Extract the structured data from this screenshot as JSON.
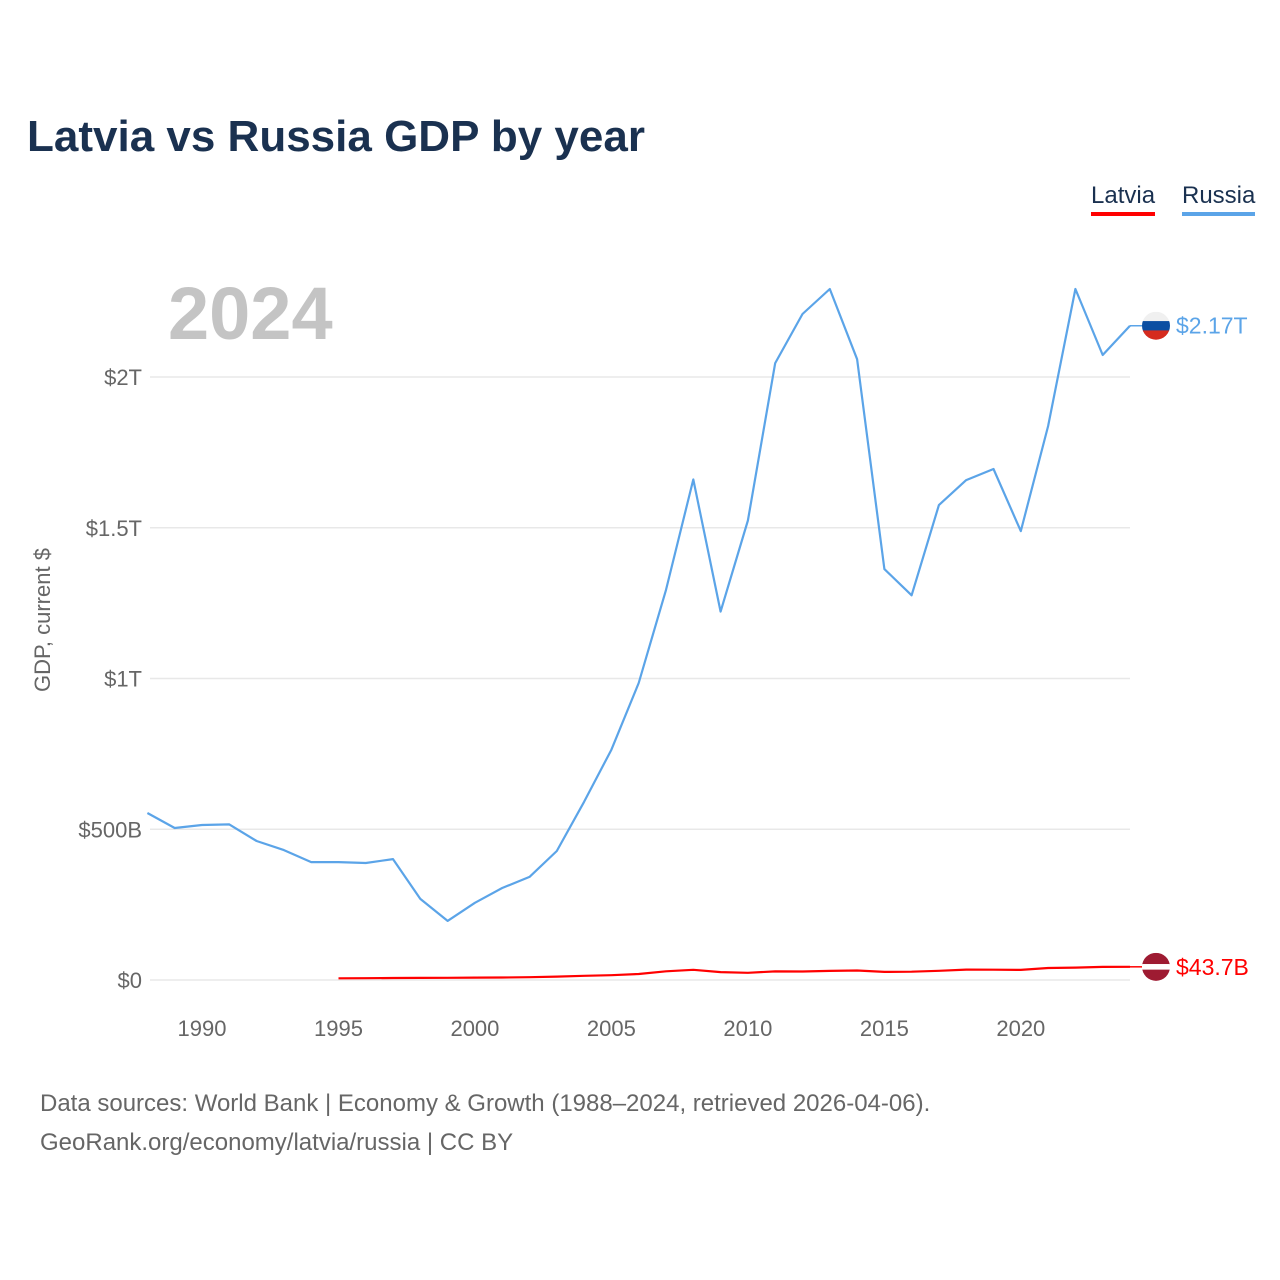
{
  "chart_data": {
    "type": "line",
    "title": "Latvia vs Russia GDP by year",
    "ylabel": "GDP, current $",
    "xlabel": "",
    "year_label": "2024",
    "xlim": [
      1988,
      2024
    ],
    "ylim": [
      0,
      2.3
    ],
    "y_unit": "trillion USD",
    "x_ticks": [
      1990,
      1995,
      2000,
      2005,
      2010,
      2015,
      2020
    ],
    "y_ticks": [
      {
        "v": 0,
        "label": "$0"
      },
      {
        "v": 0.5,
        "label": "$500B"
      },
      {
        "v": 1,
        "label": "$1T"
      },
      {
        "v": 1.5,
        "label": "$1.5T"
      },
      {
        "v": 2,
        "label": "$2T"
      }
    ],
    "grid": true,
    "legend": "top-right",
    "series": [
      {
        "name": "Latvia",
        "color": "#ff0000",
        "end_label": "$43.7B",
        "flag": "latvia",
        "x": [
          1995,
          1996,
          1997,
          1998,
          1999,
          2000,
          2001,
          2002,
          2003,
          2004,
          2005,
          2006,
          2007,
          2008,
          2009,
          2010,
          2011,
          2012,
          2013,
          2014,
          2015,
          2016,
          2017,
          2018,
          2019,
          2020,
          2021,
          2022,
          2023,
          2024
        ],
        "values": [
          0.0056,
          0.0059,
          0.0065,
          0.0069,
          0.0073,
          0.0079,
          0.0083,
          0.0093,
          0.0112,
          0.0138,
          0.016,
          0.02,
          0.0288,
          0.0337,
          0.0262,
          0.0238,
          0.0285,
          0.0281,
          0.0303,
          0.0314,
          0.027,
          0.0276,
          0.0305,
          0.0344,
          0.0341,
          0.0336,
          0.0399,
          0.0412,
          0.0436,
          0.0437
        ]
      },
      {
        "name": "Russia",
        "color": "#5ba4e8",
        "end_label": "$2.17T",
        "flag": "russia",
        "x": [
          1988,
          1989,
          1990,
          1991,
          1992,
          1993,
          1994,
          1995,
          1996,
          1997,
          1998,
          1999,
          2000,
          2001,
          2002,
          2003,
          2004,
          2005,
          2006,
          2007,
          2008,
          2009,
          2010,
          2011,
          2012,
          2013,
          2014,
          2015,
          2016,
          2017,
          2018,
          2019,
          2020,
          2021,
          2022,
          2023,
          2024
        ],
        "values": [
          0.554,
          0.504,
          0.514,
          0.516,
          0.461,
          0.431,
          0.391,
          0.391,
          0.388,
          0.401,
          0.269,
          0.196,
          0.256,
          0.305,
          0.342,
          0.428,
          0.591,
          0.764,
          0.985,
          1.294,
          1.66,
          1.222,
          1.524,
          2.046,
          2.209,
          2.292,
          2.059,
          1.363,
          1.276,
          1.575,
          1.658,
          1.695,
          1.489,
          1.837,
          2.292,
          2.073,
          2.17
        ]
      }
    ]
  },
  "footer": {
    "line1": "Data sources: World Bank | Economy & Growth (1988–2024, retrieved 2026-04-06).",
    "line2": "GeoRank.org/economy/latvia/russia | CC BY"
  }
}
